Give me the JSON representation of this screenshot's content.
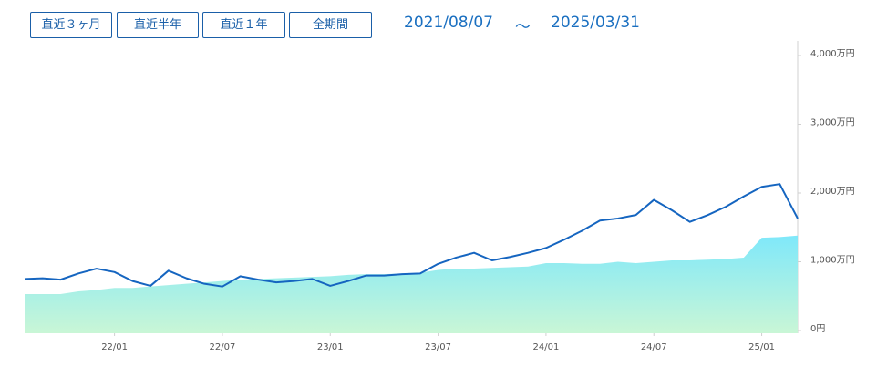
{
  "buttons": [
    "直近３ヶ月",
    "直近半年",
    "直近１年",
    "全期間"
  ],
  "date_range": {
    "start": "2021/08/07",
    "separator": "～",
    "end": "2025/03/31"
  },
  "chart_data": {
    "type": "line",
    "x": [
      "21/08",
      "21/09",
      "21/10",
      "21/11",
      "21/12",
      "22/01",
      "22/02",
      "22/03",
      "22/04",
      "22/05",
      "22/06",
      "22/07",
      "22/08",
      "22/09",
      "22/10",
      "22/11",
      "22/12",
      "23/01",
      "23/02",
      "23/03",
      "23/04",
      "23/05",
      "23/06",
      "23/07",
      "23/08",
      "23/09",
      "23/10",
      "23/11",
      "23/12",
      "24/01",
      "24/02",
      "24/03",
      "24/04",
      "24/05",
      "24/06",
      "24/07",
      "24/08",
      "24/09",
      "24/10",
      "24/11",
      "24/12",
      "25/01",
      "25/02",
      "25/03"
    ],
    "xlim": [
      "21/08",
      "25/03"
    ],
    "xticks": [
      "22/01",
      "22/07",
      "23/01",
      "23/07",
      "24/01",
      "24/07",
      "25/01"
    ],
    "ylim": [
      0,
      4000
    ],
    "yticks": [
      {
        "value": 0,
        "label": "0円"
      },
      {
        "value": 1000,
        "label": "1,000万円"
      },
      {
        "value": 2000,
        "label": "2,000万円"
      },
      {
        "value": 3000,
        "label": "3,000万円"
      },
      {
        "value": 4000,
        "label": "4,000万円"
      }
    ],
    "series": [
      {
        "fill": true,
        "color": "#8eeaf6",
        "values": [
          530,
          530,
          530,
          570,
          590,
          620,
          620,
          640,
          660,
          680,
          700,
          720,
          740,
          750,
          760,
          770,
          780,
          790,
          810,
          820,
          820,
          830,
          840,
          880,
          900,
          900,
          910,
          920,
          930,
          980,
          980,
          970,
          970,
          1000,
          980,
          1000,
          1020,
          1020,
          1030,
          1040,
          1060,
          1350,
          1360,
          1380
        ]
      },
      {
        "fill": false,
        "color": "#1565c0",
        "values": [
          750,
          760,
          740,
          830,
          900,
          850,
          720,
          650,
          870,
          760,
          680,
          640,
          790,
          740,
          700,
          720,
          750,
          650,
          720,
          800,
          800,
          820,
          830,
          970,
          1060,
          1130,
          1020,
          1070,
          1130,
          1200,
          1320,
          1450,
          1600,
          1630,
          1680,
          1900,
          1750,
          1580,
          1680,
          1800,
          1950,
          2090,
          2130,
          1630
        ]
      }
    ]
  }
}
